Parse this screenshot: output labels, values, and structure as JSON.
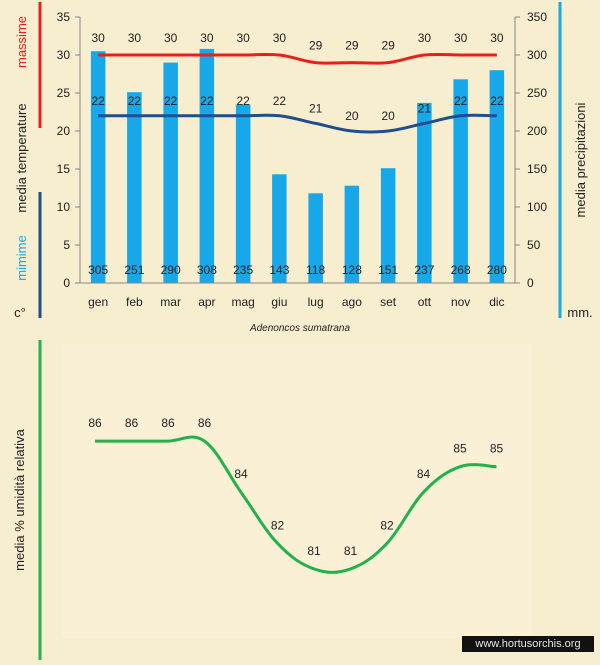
{
  "species_name": "Adenoncos sumatrana",
  "watermark": "www.hortusorchis.org",
  "colors": {
    "max_line": "#e8201c",
    "min_line": "#1f4e8c",
    "bars": "#16a8e8",
    "humidity": "#22b24c",
    "bg": "#f7edcf"
  },
  "chart_data": [
    {
      "type": "bar",
      "categories": [
        "gen",
        "feb",
        "mar",
        "apr",
        "mag",
        "giu",
        "lug",
        "ago",
        "set",
        "ott",
        "nov",
        "dic"
      ],
      "y_left": {
        "label_parts": [
          "massime",
          "media  temperature",
          "mimime"
        ],
        "unit": "c°",
        "ticks": [
          "0",
          "5",
          "10",
          "15",
          "20",
          "25",
          "30",
          "35"
        ],
        "range": [
          0,
          35
        ]
      },
      "y_right": {
        "label": "media  precipitazioni",
        "unit": "mm.",
        "ticks": [
          "0",
          "50",
          "100",
          "150",
          "200",
          "250",
          "300",
          "350"
        ],
        "range": [
          0,
          350
        ]
      },
      "series": [
        {
          "name": "media precipitazioni",
          "kind": "bar",
          "axis": "right",
          "values": [
            305,
            251,
            290,
            308,
            235,
            143,
            118,
            128,
            151,
            237,
            268,
            280
          ]
        },
        {
          "name": "massime",
          "kind": "line",
          "axis": "left",
          "values": [
            30,
            30,
            30,
            30,
            30,
            30,
            29,
            29,
            29,
            30,
            30,
            30
          ]
        },
        {
          "name": "mimime",
          "kind": "line",
          "axis": "left",
          "values": [
            22,
            22,
            22,
            22,
            22,
            22,
            21,
            20,
            20,
            21,
            22,
            22
          ]
        }
      ]
    },
    {
      "type": "line",
      "ylabel": "media %  umidità relativa",
      "categories": [
        "gen",
        "feb",
        "mar",
        "apr",
        "mag",
        "giu",
        "lug",
        "ago",
        "set",
        "ott",
        "nov",
        "dic"
      ],
      "series": [
        {
          "name": "media % umidità relativa",
          "values": [
            86,
            86,
            86,
            86,
            84,
            82,
            81,
            81,
            82,
            84,
            85,
            85
          ]
        }
      ],
      "ylim": [
        79,
        88
      ]
    }
  ]
}
